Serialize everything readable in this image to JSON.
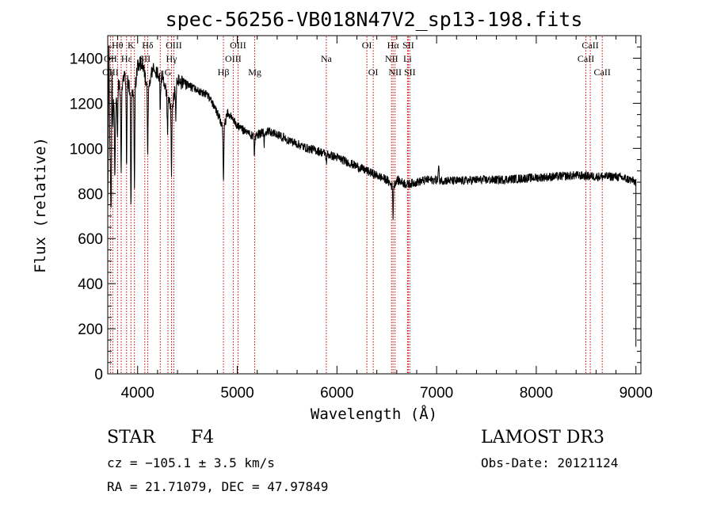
{
  "chart_data": {
    "type": "line",
    "title": "spec-56256-VB018N47V2_sp13-198.fits",
    "xlabel": "Wavelength (Å)",
    "ylabel": "Flux (relative)",
    "xlim": [
      3700,
      9050
    ],
    "ylim": [
      0,
      1500
    ],
    "xticks": [
      4000,
      5000,
      6000,
      7000,
      8000,
      9000
    ],
    "yticks": [
      0,
      200,
      400,
      600,
      800,
      1000,
      1200,
      1400
    ],
    "series": [
      {
        "name": "flux",
        "anchors": [
          [
            3700,
            700
          ],
          [
            3710,
            1150
          ],
          [
            3730,
            900
          ],
          [
            3750,
            1250
          ],
          [
            3775,
            1150
          ],
          [
            3800,
            1300
          ],
          [
            3830,
            1250
          ],
          [
            3860,
            1320
          ],
          [
            3900,
            1300
          ],
          [
            3933,
            1250
          ],
          [
            3968,
            1240
          ],
          [
            4000,
            1370
          ],
          [
            4050,
            1380
          ],
          [
            4101,
            1250
          ],
          [
            4150,
            1360
          ],
          [
            4200,
            1330
          ],
          [
            4250,
            1320
          ],
          [
            4300,
            1230
          ],
          [
            4340,
            1180
          ],
          [
            4400,
            1300
          ],
          [
            4500,
            1280
          ],
          [
            4600,
            1260
          ],
          [
            4700,
            1240
          ],
          [
            4800,
            1160
          ],
          [
            4861,
            1080
          ],
          [
            4900,
            1160
          ],
          [
            4950,
            1130
          ],
          [
            5000,
            1100
          ],
          [
            5100,
            1070
          ],
          [
            5172,
            1050
          ],
          [
            5200,
            1060
          ],
          [
            5300,
            1080
          ],
          [
            5400,
            1060
          ],
          [
            5500,
            1040
          ],
          [
            5600,
            1020
          ],
          [
            5700,
            1000
          ],
          [
            5800,
            990
          ],
          [
            5893,
            975
          ],
          [
            6000,
            960
          ],
          [
            6100,
            940
          ],
          [
            6200,
            920
          ],
          [
            6300,
            900
          ],
          [
            6400,
            880
          ],
          [
            6500,
            860
          ],
          [
            6563,
            830
          ],
          [
            6600,
            860
          ],
          [
            6700,
            840
          ],
          [
            6800,
            850
          ],
          [
            6900,
            860
          ],
          [
            7000,
            860
          ],
          [
            7200,
            855
          ],
          [
            7400,
            860
          ],
          [
            7600,
            860
          ],
          [
            7800,
            865
          ],
          [
            8000,
            870
          ],
          [
            8200,
            875
          ],
          [
            8400,
            880
          ],
          [
            8600,
            875
          ],
          [
            8800,
            875
          ],
          [
            8950,
            860
          ],
          [
            9000,
            850
          ]
        ],
        "dips": [
          [
            3734,
            240
          ],
          [
            3750,
            180
          ],
          [
            3771,
            300
          ],
          [
            3798,
            260
          ],
          [
            3835,
            380
          ],
          [
            3889,
            400
          ],
          [
            3933,
            520
          ],
          [
            3968,
            400
          ],
          [
            4101,
            300
          ],
          [
            4227,
            150
          ],
          [
            4300,
            180
          ],
          [
            4340,
            330
          ],
          [
            4383,
            120
          ],
          [
            4861,
            230
          ],
          [
            5172,
            80
          ],
          [
            5270,
            60
          ],
          [
            5893,
            40
          ],
          [
            6563,
            130
          ]
        ],
        "spikes": [
          [
            3712,
            350
          ],
          [
            3742,
            250
          ],
          [
            7020,
            60
          ]
        ],
        "noise": 40
      }
    ],
    "lines": [
      {
        "name": "Hθ",
        "wl": 3798,
        "row": 0
      },
      {
        "name": "K",
        "wl": 3933,
        "row": 0
      },
      {
        "name": "Hδ",
        "wl": 4101,
        "row": 0
      },
      {
        "name": "OIII",
        "wl": 4363,
        "row": 0
      },
      {
        "name": "OIII",
        "wl": 5007,
        "row": 0
      },
      {
        "name": "OI",
        "wl": 6300,
        "row": 0
      },
      {
        "name": "Hα",
        "wl": 6563,
        "row": 0
      },
      {
        "name": "SII",
        "wl": 6716,
        "row": 0
      },
      {
        "name": "CaII",
        "wl": 8542,
        "row": 0
      },
      {
        "name": "OII",
        "wl": 3727,
        "row": 1
      },
      {
        "name": "Hε",
        "wl": 3889,
        "row": 1
      },
      {
        "name": "SII",
        "wl": 4072,
        "row": 1
      },
      {
        "name": "Hγ",
        "wl": 4340,
        "row": 1
      },
      {
        "name": "OIII",
        "wl": 4959,
        "row": 1
      },
      {
        "name": "Na",
        "wl": 5893,
        "row": 1
      },
      {
        "name": "NII",
        "wl": 6548,
        "row": 1
      },
      {
        "name": "Li",
        "wl": 6708,
        "row": 1
      },
      {
        "name": "CaII",
        "wl": 8498,
        "row": 1
      },
      {
        "name": "OIII",
        "wl": 3727,
        "row": 2
      },
      {
        "name": "G",
        "wl": 4304,
        "row": 2
      },
      {
        "name": "Hβ",
        "wl": 4861,
        "row": 2
      },
      {
        "name": "Mg",
        "wl": 5175,
        "row": 2
      },
      {
        "name": "OI",
        "wl": 6364,
        "row": 2
      },
      {
        "name": "NII",
        "wl": 6583,
        "row": 2
      },
      {
        "name": "SII",
        "wl": 6731,
        "row": 2
      },
      {
        "name": "CaII",
        "wl": 8662,
        "row": 2
      }
    ],
    "extra_line_marks": [
      3750,
      3835,
      3968,
      4227
    ]
  },
  "info": {
    "object_type": "STAR",
    "subclass": "F4",
    "survey": "LAMOST DR3",
    "cz": "cz = −105.1 ± 3.5 km/s",
    "obs_date": "Obs-Date: 20121124",
    "coords": "RA =  21.71079, DEC =  47.97849"
  },
  "colors": {
    "line_marker": "#cc0000",
    "spectrum": "#000000"
  }
}
